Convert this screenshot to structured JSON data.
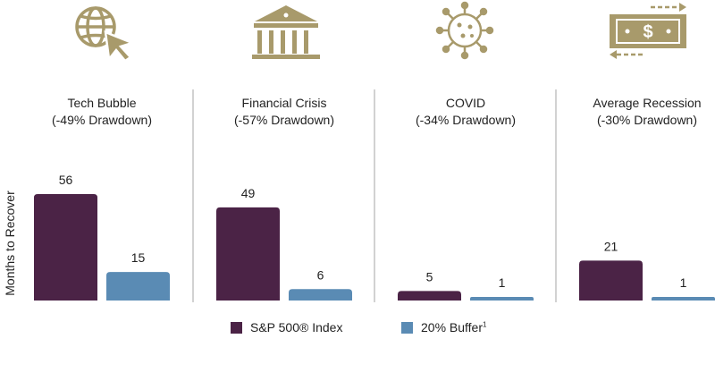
{
  "chart_data": {
    "type": "bar",
    "ylabel": "Months to Recover",
    "groups": [
      {
        "title": "Tech Bubble",
        "subtitle": "(-49% Drawdown)",
        "icon": "globe-cursor-icon"
      },
      {
        "title": "Financial Crisis",
        "subtitle": "(-57% Drawdown)",
        "icon": "bank-building-icon"
      },
      {
        "title": "COVID",
        "subtitle": "(-34% Drawdown)",
        "icon": "virus-icon"
      },
      {
        "title": "Average Recession",
        "subtitle": "(-30% Drawdown)",
        "icon": "dollar-bill-icon"
      }
    ],
    "series": [
      {
        "name": "S&P 500® Index",
        "values": [
          56,
          49,
          5,
          21
        ],
        "color": "#4b2346"
      },
      {
        "name": "20% Buffer",
        "name_superscript": "1",
        "values": [
          15,
          6,
          1,
          1
        ],
        "color": "#5a8bb4"
      }
    ],
    "ylim": [
      0,
      60
    ],
    "grid": false,
    "legend": "bottom-center",
    "icon_color": "#a89a6b",
    "divider_color": "#b5b5b5"
  }
}
